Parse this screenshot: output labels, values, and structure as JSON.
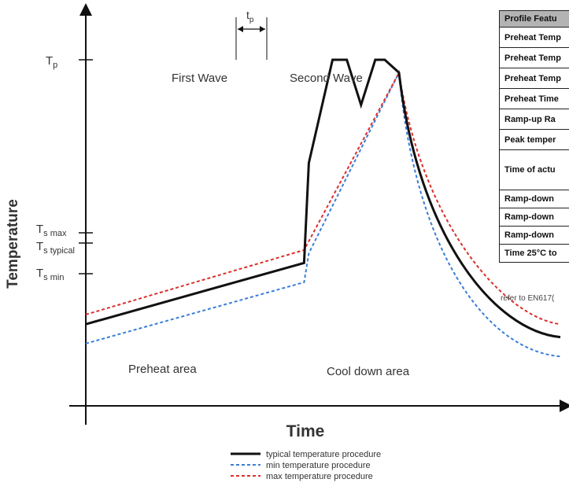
{
  "chart_data": {
    "type": "line",
    "title": "",
    "xlabel": "Time",
    "ylabel": "Temperature",
    "y_ticks": [
      "T_p",
      "T_s max",
      "T_s typical",
      "T_s min"
    ],
    "series": [
      {
        "name": "typical temperature procedure",
        "color": "#111111",
        "style": "solid",
        "x": [
          0,
          46,
          47,
          52,
          55,
          58,
          61,
          63,
          66,
          100
        ],
        "y": [
          18,
          37,
          68,
          100,
          100,
          86,
          100,
          100,
          96,
          14
        ]
      },
      {
        "name": "min temperature procedure",
        "color": "#3b7dd8",
        "style": "dashed",
        "x": [
          0,
          46,
          47,
          66,
          100
        ],
        "y": [
          12,
          31,
          40,
          96,
          8
        ]
      },
      {
        "name": "max temperature procedure",
        "color": "#d9302c",
        "style": "dashed",
        "x": [
          0,
          46,
          66,
          100
        ],
        "y": [
          21,
          41,
          96,
          18
        ]
      }
    ],
    "annotations": [
      "First Wave",
      "Second Wave",
      "Preheat area",
      "Cool down area",
      "t_p"
    ],
    "legend_position": "bottom-center"
  },
  "labels": {
    "tp_main": "T",
    "tp_sub": "p",
    "tsmax_main": "T",
    "tsmax_sub": "s max",
    "tstyp_main": "T",
    "tstyp_sub": "s typical",
    "tsmin_main": "T",
    "tsmin_sub": "s min",
    "tp_dur_main": "t",
    "tp_dur_sub": "p",
    "first_wave": "First Wave",
    "second_wave": "Second Wave",
    "preheat": "Preheat area",
    "cooldown": "Cool down area",
    "xlabel": "Time",
    "ylabel": "Temperature"
  },
  "legend": [
    {
      "label": "typical temperature procedure",
      "color": "#111111",
      "dash": "none"
    },
    {
      "label": "min temperature procedure",
      "color": "#3b7dd8",
      "dash": "4 3"
    },
    {
      "label": "max temperature procedure",
      "color": "#d9302c",
      "dash": "4 3"
    }
  ],
  "table": {
    "header": "Profile Featu",
    "rows": [
      "Preheat Temp",
      "Preheat Temp",
      "Preheat Temp",
      "Preheat Time",
      "Ramp-up Ra",
      "Peak temper",
      "Time of actu",
      "Ramp-down",
      "Ramp-down",
      "Ramp-down",
      "Time 25°C to"
    ],
    "note": "refer to EN617("
  }
}
